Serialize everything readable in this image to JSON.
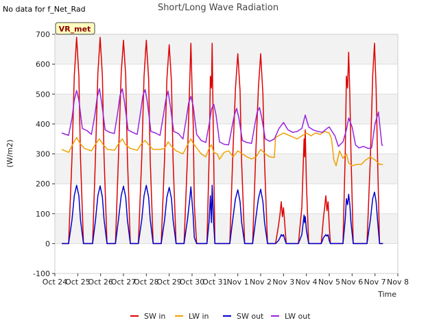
{
  "note": "No data for f_Net_Rad",
  "chart_data": {
    "type": "line",
    "title": "Short/Long Wave Radiation",
    "xlabel": "Time",
    "ylabel": "(W/m2)",
    "badge": "VR_met",
    "ylim": [
      -100,
      700
    ],
    "yticks": [
      -100,
      0,
      100,
      200,
      300,
      400,
      500,
      600,
      700
    ],
    "xlim": [
      0,
      15
    ],
    "xticks": [
      {
        "v": 0,
        "label": "Oct 24"
      },
      {
        "v": 1,
        "label": "Oct 25"
      },
      {
        "v": 2,
        "label": "Oct 26"
      },
      {
        "v": 3,
        "label": "Oct 27"
      },
      {
        "v": 4,
        "label": "Oct 28"
      },
      {
        "v": 5,
        "label": "Oct 29"
      },
      {
        "v": 6,
        "label": "Oct 30"
      },
      {
        "v": 7,
        "label": "Oct 31"
      },
      {
        "v": 8,
        "label": "Nov 1"
      },
      {
        "v": 9,
        "label": "Nov 2"
      },
      {
        "v": 10,
        "label": "Nov 3"
      },
      {
        "v": 11,
        "label": "Nov 4"
      },
      {
        "v": 12,
        "label": "Nov 5"
      },
      {
        "v": 13,
        "label": "Nov 6"
      },
      {
        "v": 14,
        "label": "Nov 7"
      },
      {
        "v": 15,
        "label": "Nov 8"
      }
    ],
    "series": [
      {
        "name": "SW in",
        "color": "#dd0000",
        "x": [
          0.3,
          0.6,
          0.75,
          0.85,
          0.95,
          1.05,
          1.12,
          1.25,
          1.45,
          1.65,
          1.78,
          1.88,
          1.98,
          2.08,
          2.15,
          2.28,
          2.45,
          2.65,
          2.78,
          2.9,
          3.0,
          3.1,
          3.17,
          3.3,
          3.45,
          3.65,
          3.8,
          3.9,
          4.0,
          4.1,
          4.17,
          4.3,
          4.45,
          4.65,
          4.8,
          4.9,
          5.0,
          5.1,
          5.17,
          5.3,
          5.45,
          5.65,
          5.8,
          5.9,
          5.95,
          6.0,
          6.05,
          6.1,
          6.2,
          6.3,
          6.45,
          6.65,
          6.75,
          6.8,
          6.85,
          6.88,
          6.92,
          6.95,
          7.0,
          7.08,
          7.15,
          7.3,
          7.45,
          7.65,
          7.78,
          7.9,
          8.0,
          8.1,
          8.17,
          8.3,
          8.45,
          8.65,
          8.78,
          8.9,
          9.0,
          9.1,
          9.17,
          9.3,
          9.45,
          9.65,
          9.78,
          9.85,
          9.9,
          9.95,
          10.0,
          10.05,
          10.12,
          10.2,
          10.35,
          10.5,
          10.65,
          10.8,
          10.9,
          10.92,
          10.95,
          11.0,
          11.1,
          11.25,
          11.45,
          11.65,
          11.75,
          11.8,
          11.85,
          11.9,
          11.95,
          12.0,
          12.05,
          12.2,
          12.4,
          12.6,
          12.7,
          12.75,
          12.8,
          12.85,
          12.9,
          12.95,
          13.05,
          13.15,
          13.3,
          13.45,
          13.65,
          13.8,
          13.9,
          13.98,
          14.05,
          14.12,
          14.2,
          14.35
        ],
        "values": [
          0,
          0,
          290,
          560,
          690,
          560,
          290,
          0,
          0,
          0,
          300,
          570,
          690,
          560,
          290,
          0,
          0,
          0,
          290,
          570,
          680,
          560,
          290,
          0,
          0,
          0,
          290,
          560,
          680,
          550,
          280,
          0,
          0,
          0,
          290,
          550,
          665,
          540,
          280,
          0,
          0,
          0,
          290,
          550,
          670,
          520,
          400,
          130,
          0,
          0,
          0,
          0,
          300,
          560,
          520,
          670,
          420,
          260,
          0,
          0,
          0,
          0,
          0,
          0,
          290,
          520,
          635,
          510,
          270,
          0,
          0,
          0,
          290,
          520,
          635,
          500,
          270,
          0,
          0,
          0,
          60,
          100,
          140,
          90,
          120,
          70,
          0,
          0,
          0,
          0,
          0,
          120,
          350,
          290,
          380,
          200,
          0,
          0,
          0,
          0,
          90,
          120,
          160,
          110,
          140,
          60,
          0,
          0,
          0,
          0,
          300,
          560,
          520,
          640,
          500,
          300,
          0,
          0,
          0,
          0,
          0,
          290,
          560,
          670,
          520,
          260,
          0,
          0
        ]
      },
      {
        "name": "LW in",
        "color": "#f0a000",
        "x": [
          0.3,
          0.6,
          0.8,
          0.95,
          1.1,
          1.3,
          1.6,
          1.8,
          1.95,
          2.1,
          2.3,
          2.6,
          2.8,
          2.95,
          3.1,
          3.3,
          3.6,
          3.8,
          3.95,
          4.1,
          4.3,
          4.6,
          4.8,
          4.95,
          5.1,
          5.3,
          5.6,
          5.8,
          5.95,
          6.05,
          6.2,
          6.4,
          6.6,
          6.75,
          6.85,
          6.95,
          7.1,
          7.2,
          7.4,
          7.6,
          7.8,
          8.0,
          8.2,
          8.4,
          8.6,
          8.8,
          9.0,
          9.2,
          9.4,
          9.6,
          9.65,
          10.0,
          10.3,
          10.6,
          10.8,
          11.0,
          11.2,
          11.4,
          11.6,
          11.8,
          12.0,
          12.1,
          12.2,
          12.3,
          12.45,
          12.6,
          12.75,
          12.85,
          13.0,
          13.2,
          13.4,
          13.6,
          13.8,
          14.0,
          14.2,
          14.35
        ],
        "values": [
          315,
          305,
          335,
          355,
          335,
          318,
          310,
          335,
          350,
          332,
          315,
          312,
          335,
          350,
          330,
          318,
          312,
          335,
          345,
          330,
          315,
          315,
          318,
          340,
          325,
          310,
          300,
          330,
          350,
          335,
          320,
          300,
          290,
          320,
          330,
          305,
          300,
          282,
          305,
          310,
          290,
          310,
          300,
          290,
          283,
          290,
          315,
          300,
          290,
          288,
          355,
          370,
          360,
          350,
          360,
          370,
          360,
          370,
          365,
          375,
          370,
          350,
          280,
          260,
          310,
          285,
          300,
          270,
          260,
          265,
          265,
          280,
          290,
          280,
          265,
          265
        ]
      },
      {
        "name": "SW out",
        "color": "#0000cc",
        "x": [
          0.3,
          0.6,
          0.75,
          0.85,
          0.95,
          1.05,
          1.12,
          1.25,
          1.45,
          1.65,
          1.78,
          1.88,
          1.98,
          2.08,
          2.15,
          2.28,
          2.45,
          2.65,
          2.78,
          2.9,
          3.0,
          3.1,
          3.17,
          3.3,
          3.45,
          3.65,
          3.8,
          3.9,
          4.0,
          4.1,
          4.17,
          4.3,
          4.45,
          4.65,
          4.8,
          4.9,
          5.0,
          5.1,
          5.17,
          5.3,
          5.45,
          5.65,
          5.8,
          5.9,
          5.95,
          6.0,
          6.05,
          6.1,
          6.2,
          6.3,
          6.45,
          6.65,
          6.75,
          6.8,
          6.85,
          6.88,
          6.92,
          6.95,
          7.0,
          7.08,
          7.15,
          7.3,
          7.45,
          7.65,
          7.78,
          7.9,
          8.0,
          8.1,
          8.17,
          8.3,
          8.45,
          8.65,
          8.78,
          8.9,
          9.0,
          9.1,
          9.17,
          9.3,
          9.45,
          9.65,
          9.78,
          9.85,
          9.9,
          9.95,
          10.0,
          10.05,
          10.12,
          10.2,
          10.35,
          10.5,
          10.65,
          10.8,
          10.9,
          10.92,
          10.95,
          11.0,
          11.1,
          11.25,
          11.45,
          11.65,
          11.75,
          11.8,
          11.85,
          11.9,
          11.95,
          12.0,
          12.05,
          12.2,
          12.4,
          12.6,
          12.7,
          12.75,
          12.8,
          12.85,
          12.9,
          12.95,
          13.05,
          13.15,
          13.3,
          13.45,
          13.65,
          13.8,
          13.9,
          13.98,
          14.05,
          14.12,
          14.2,
          14.35
        ],
        "values": [
          0,
          0,
          80,
          160,
          195,
          160,
          80,
          0,
          0,
          0,
          80,
          160,
          193,
          155,
          80,
          0,
          0,
          0,
          80,
          160,
          192,
          155,
          80,
          0,
          0,
          0,
          80,
          160,
          195,
          155,
          80,
          0,
          0,
          0,
          80,
          155,
          188,
          150,
          80,
          0,
          0,
          0,
          80,
          150,
          190,
          140,
          90,
          20,
          0,
          0,
          0,
          0,
          80,
          160,
          70,
          195,
          110,
          60,
          0,
          0,
          0,
          0,
          0,
          0,
          80,
          150,
          180,
          140,
          70,
          0,
          0,
          0,
          80,
          150,
          182,
          140,
          70,
          0,
          0,
          0,
          10,
          20,
          30,
          25,
          30,
          15,
          0,
          0,
          0,
          0,
          0,
          30,
          95,
          70,
          90,
          45,
          0,
          0,
          0,
          0,
          20,
          25,
          30,
          25,
          30,
          10,
          0,
          0,
          0,
          0,
          80,
          150,
          130,
          165,
          130,
          70,
          0,
          0,
          0,
          0,
          0,
          80,
          150,
          172,
          140,
          70,
          0,
          0
        ]
      },
      {
        "name": "LW out",
        "color": "#9922dd",
        "x": [
          0.3,
          0.6,
          0.75,
          0.85,
          0.95,
          1.05,
          1.2,
          1.4,
          1.6,
          1.75,
          1.85,
          1.95,
          2.05,
          2.2,
          2.4,
          2.6,
          2.75,
          2.85,
          2.95,
          3.05,
          3.2,
          3.4,
          3.6,
          3.75,
          3.85,
          3.95,
          4.05,
          4.2,
          4.4,
          4.6,
          4.75,
          4.85,
          4.95,
          5.05,
          5.2,
          5.4,
          5.6,
          5.75,
          5.85,
          5.95,
          6.05,
          6.2,
          6.4,
          6.6,
          6.75,
          6.85,
          6.95,
          7.05,
          7.2,
          7.4,
          7.6,
          7.75,
          7.85,
          7.95,
          8.05,
          8.2,
          8.4,
          8.6,
          8.75,
          8.85,
          8.95,
          9.05,
          9.2,
          9.4,
          9.6,
          9.8,
          10.0,
          10.2,
          10.4,
          10.6,
          10.8,
          10.95,
          11.1,
          11.3,
          11.5,
          11.7,
          11.9,
          12.0,
          12.1,
          12.25,
          12.4,
          12.6,
          12.75,
          12.85,
          13.0,
          13.15,
          13.3,
          13.5,
          13.7,
          13.85,
          14.0,
          14.15,
          14.3,
          14.35
        ],
        "values": [
          370,
          362,
          420,
          480,
          512,
          480,
          385,
          378,
          365,
          430,
          490,
          518,
          470,
          380,
          372,
          368,
          440,
          495,
          518,
          470,
          380,
          372,
          365,
          440,
          495,
          515,
          470,
          375,
          370,
          362,
          430,
          480,
          510,
          460,
          375,
          368,
          350,
          420,
          470,
          492,
          460,
          365,
          345,
          338,
          400,
          450,
          465,
          430,
          340,
          332,
          330,
          390,
          430,
          452,
          420,
          345,
          338,
          335,
          400,
          440,
          455,
          420,
          350,
          342,
          350,
          385,
          405,
          380,
          372,
          375,
          385,
          430,
          390,
          380,
          375,
          372,
          385,
          390,
          378,
          360,
          325,
          340,
          380,
          420,
          390,
          330,
          320,
          325,
          318,
          320,
          400,
          440,
          330,
          328
        ]
      }
    ]
  }
}
